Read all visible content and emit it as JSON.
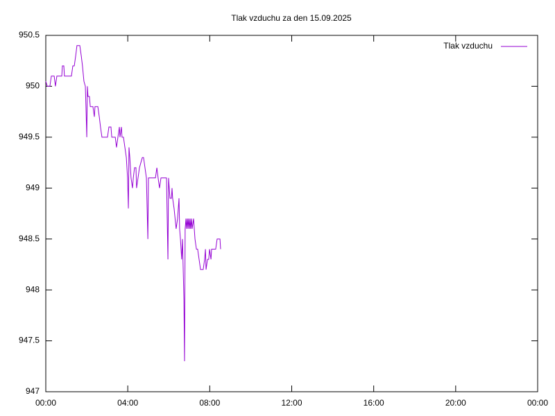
{
  "chart_data": {
    "type": "line",
    "title": "Tlak vzduchu za den 15.09.2025",
    "x": [
      0,
      0.07,
      0.2,
      0.27,
      0.41,
      0.47,
      0.54,
      0.78,
      0.81,
      0.88,
      0.91,
      1.25,
      1.32,
      1.39,
      1.46,
      1.52,
      1.66,
      1.73,
      1.79,
      1.86,
      1.93,
      1.96,
      2.0,
      2.03,
      2.06,
      2.13,
      2.17,
      2.3,
      2.37,
      2.4,
      2.54,
      2.61,
      2.67,
      2.74,
      3.01,
      3.08,
      3.18,
      3.22,
      3.39,
      3.45,
      3.52,
      3.59,
      3.62,
      3.69,
      3.72,
      3.79,
      3.86,
      3.93,
      3.99,
      4.03,
      4.06,
      4.1,
      4.13,
      4.16,
      4.23,
      4.27,
      4.33,
      4.4,
      4.43,
      4.5,
      4.57,
      4.64,
      4.71,
      4.77,
      4.84,
      4.91,
      4.98,
      5.01,
      5.08,
      5.15,
      5.25,
      5.35,
      5.42,
      5.48,
      5.55,
      5.62,
      5.89,
      5.96,
      5.99,
      6.06,
      6.13,
      6.16,
      6.19,
      6.26,
      6.36,
      6.43,
      6.5,
      6.53,
      6.57,
      6.63,
      6.67,
      6.74,
      6.77,
      6.8,
      6.84,
      6.87,
      6.91,
      6.94,
      6.97,
      7.01,
      7.04,
      7.07,
      7.11,
      7.14,
      7.21,
      7.28,
      7.35,
      7.41,
      7.48,
      7.55,
      7.68,
      7.75,
      7.79,
      7.82,
      7.89,
      7.95,
      7.99,
      8.06,
      8.09,
      8.29,
      8.36,
      8.5,
      8.53
    ],
    "series": [
      {
        "name": "Tlak vzduchu",
        "color": "#9400d3",
        "values": [
          950.05,
          950.0,
          950.0,
          950.1,
          950.1,
          950.0,
          950.1,
          950.1,
          950.2,
          950.2,
          950.1,
          950.1,
          950.2,
          950.2,
          950.3,
          950.4,
          950.4,
          950.3,
          950.2,
          950.05,
          950.0,
          949.8,
          949.5,
          950.0,
          949.9,
          949.9,
          949.8,
          949.8,
          949.7,
          949.8,
          949.8,
          949.7,
          949.6,
          949.5,
          949.5,
          949.6,
          949.6,
          949.5,
          949.5,
          949.4,
          949.5,
          949.6,
          949.5,
          949.6,
          949.5,
          949.5,
          949.4,
          949.3,
          949.1,
          948.8,
          949.4,
          949.3,
          949.2,
          949.1,
          949.0,
          949.1,
          949.2,
          949.2,
          949.0,
          949.1,
          949.2,
          949.25,
          949.3,
          949.3,
          949.2,
          949.1,
          948.5,
          949.1,
          949.1,
          949.1,
          949.1,
          949.1,
          949.2,
          949.1,
          949.0,
          949.1,
          949.1,
          948.3,
          949.1,
          948.9,
          948.9,
          949.0,
          948.9,
          948.8,
          948.6,
          948.7,
          948.9,
          948.6,
          948.5,
          948.3,
          948.5,
          947.9,
          947.3,
          948.6,
          948.7,
          948.6,
          948.7,
          948.6,
          948.7,
          948.6,
          948.7,
          948.6,
          948.7,
          948.6,
          948.7,
          948.5,
          948.4,
          948.4,
          948.3,
          948.2,
          948.2,
          948.3,
          948.4,
          948.2,
          948.3,
          948.3,
          948.4,
          948.3,
          948.4,
          948.4,
          948.5,
          948.5,
          948.4
        ]
      }
    ],
    "xlim": [
      0,
      24
    ],
    "xticks": [
      {
        "value": 0,
        "label": "00:00"
      },
      {
        "value": 4,
        "label": "04:00"
      },
      {
        "value": 8,
        "label": "08:00"
      },
      {
        "value": 12,
        "label": "12:00"
      },
      {
        "value": 16,
        "label": "16:00"
      },
      {
        "value": 20,
        "label": "20:00"
      },
      {
        "value": 24,
        "label": "00:00"
      }
    ],
    "ylim": [
      947,
      950.5
    ],
    "yticks": [
      947,
      947.5,
      948,
      948.5,
      949,
      949.5,
      950,
      950.5
    ],
    "grid": false,
    "legend": "top-right"
  }
}
